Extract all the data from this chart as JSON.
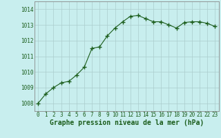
{
  "x": [
    0,
    1,
    2,
    3,
    4,
    5,
    6,
    7,
    8,
    9,
    10,
    11,
    12,
    13,
    14,
    15,
    16,
    17,
    18,
    19,
    20,
    21,
    22,
    23
  ],
  "y": [
    1008.0,
    1008.6,
    1009.0,
    1009.3,
    1009.4,
    1009.8,
    1010.3,
    1011.5,
    1011.6,
    1012.3,
    1012.8,
    1013.2,
    1013.55,
    1013.6,
    1013.4,
    1013.2,
    1013.2,
    1013.0,
    1012.8,
    1013.15,
    1013.2,
    1013.2,
    1013.1,
    1012.9
  ],
  "line_color": "#1a5c1a",
  "marker": "+",
  "marker_size": 4,
  "marker_color": "#1a5c1a",
  "bg_color": "#c8eeee",
  "grid_color": "#aacccc",
  "axis_label_color": "#1a5c1a",
  "tick_color": "#1a5c1a",
  "spine_color": "#888888",
  "xlabel": "Graphe pression niveau de la mer (hPa)",
  "xlabel_fontsize": 7,
  "tick_fontsize": 5.5,
  "ylim": [
    1007.5,
    1014.5
  ],
  "yticks": [
    1008,
    1009,
    1010,
    1011,
    1012,
    1013,
    1014
  ],
  "xticks": [
    0,
    1,
    2,
    3,
    4,
    5,
    6,
    7,
    8,
    9,
    10,
    11,
    12,
    13,
    14,
    15,
    16,
    17,
    18,
    19,
    20,
    21,
    22,
    23
  ],
  "xtick_labels": [
    "0",
    "1",
    "2",
    "3",
    "4",
    "5",
    "6",
    "7",
    "8",
    "9",
    "10",
    "11",
    "12",
    "13",
    "14",
    "15",
    "16",
    "17",
    "18",
    "19",
    "20",
    "21",
    "22",
    "23"
  ]
}
